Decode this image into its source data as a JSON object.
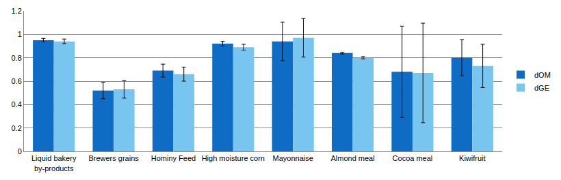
{
  "chart_data": {
    "type": "bar",
    "categories": [
      "Liquid bakery by-products",
      "Brewers grains",
      "Hominy Feed",
      "High moisture corn",
      "Mayonnaise",
      "Almond meal",
      "Cocoa meal",
      "Kiwifruit"
    ],
    "series": [
      {
        "name": "dOM",
        "color": "#0f6cc4",
        "values": [
          0.95,
          0.52,
          0.69,
          0.92,
          0.94,
          0.84,
          0.68,
          0.8
        ],
        "errors": [
          0.015,
          0.07,
          0.055,
          0.02,
          0.165,
          0.008,
          0.39,
          0.155
        ]
      },
      {
        "name": "dGE",
        "color": "#78c6ef",
        "values": [
          0.94,
          0.53,
          0.66,
          0.89,
          0.97,
          0.8,
          0.67,
          0.73
        ],
        "errors": [
          0.02,
          0.075,
          0.06,
          0.025,
          0.165,
          0.01,
          0.425,
          0.185
        ]
      }
    ],
    "ylim": [
      0,
      1.2
    ],
    "yticks": [
      0,
      0.2,
      0.4,
      0.6,
      0.8,
      1,
      1.2
    ],
    "grid": true,
    "legend": "right"
  }
}
